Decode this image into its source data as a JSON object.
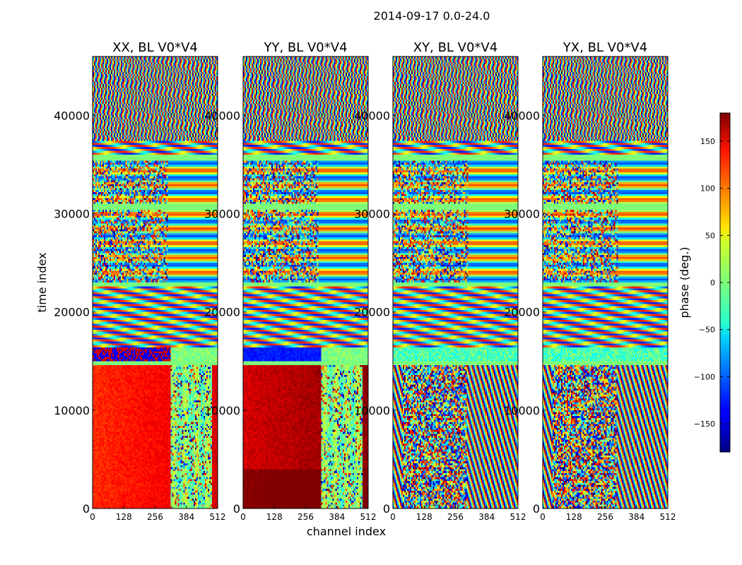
{
  "chart_data": {
    "type": "heatmap",
    "suptitle": "2014-09-17 0.0-24.0",
    "xlabel": "channel index",
    "ylabel": "time index",
    "xlim": [
      0,
      512
    ],
    "ylim": [
      0,
      46000
    ],
    "xticks": [
      0,
      128,
      256,
      384,
      512
    ],
    "yticks": [
      0,
      10000,
      20000,
      30000,
      40000
    ],
    "colorbar": {
      "label": "phase (deg.)",
      "range": [
        -180,
        180
      ],
      "ticks": [
        150,
        100,
        50,
        0,
        -50,
        -100,
        -150
      ],
      "tick_labels": [
        "150",
        "100",
        "50",
        "0",
        "−50",
        "−100",
        "−150"
      ],
      "colormap": "jet"
    },
    "panels": [
      {
        "title": "XX, BL V0*V4",
        "polarization": "XX",
        "lower_phase_deg": 120
      },
      {
        "title": "YY, BL V0*V4",
        "polarization": "YY",
        "lower_phase_deg": 150
      },
      {
        "title": "XY, BL V0*V4",
        "polarization": "XY",
        "lower_phase_deg": null
      },
      {
        "title": "YX, BL V0*V4",
        "polarization": "YX",
        "lower_phase_deg": null
      }
    ],
    "time_bands": [
      {
        "from": 0,
        "to": 14500,
        "kind": "lower"
      },
      {
        "from": 14500,
        "to": 15000,
        "kind": "flat"
      },
      {
        "from": 15000,
        "to": 16500,
        "kind": "stripe"
      },
      {
        "from": 16500,
        "to": 22500,
        "kind": "fringe"
      },
      {
        "from": 22500,
        "to": 23000,
        "kind": "flat"
      },
      {
        "from": 23000,
        "to": 30500,
        "kind": "noisy"
      },
      {
        "from": 30500,
        "to": 31000,
        "kind": "flat"
      },
      {
        "from": 31000,
        "to": 35500,
        "kind": "noisy"
      },
      {
        "from": 35500,
        "to": 36000,
        "kind": "flat"
      },
      {
        "from": 36000,
        "to": 37500,
        "kind": "fringe"
      },
      {
        "from": 37500,
        "to": 46000,
        "kind": "wave"
      }
    ]
  }
}
